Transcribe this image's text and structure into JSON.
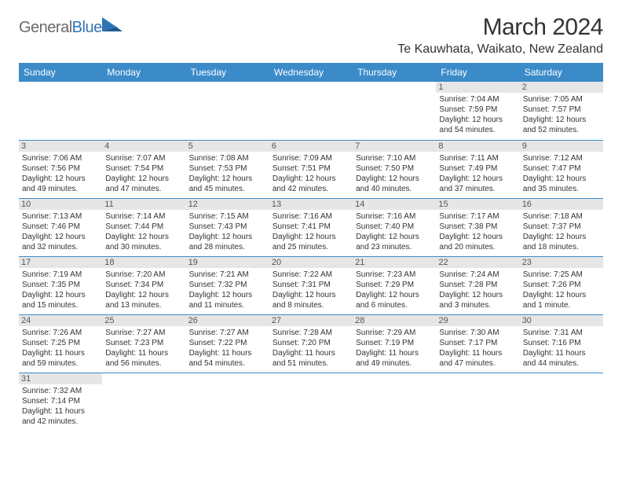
{
  "logo": {
    "text1": "General",
    "text2": "Blue"
  },
  "title": "March 2024",
  "location": "Te Kauwhata, Waikato, New Zealand",
  "colors": {
    "header_bg": "#3b8bc9",
    "header_fg": "#ffffff",
    "daynum_bg": "#e6e6e6",
    "row_border": "#3b8bc9",
    "text": "#333333",
    "logo_gray": "#6a6a6a",
    "logo_blue": "#2e74b5"
  },
  "day_headers": [
    "Sunday",
    "Monday",
    "Tuesday",
    "Wednesday",
    "Thursday",
    "Friday",
    "Saturday"
  ],
  "weeks": [
    [
      null,
      null,
      null,
      null,
      null,
      {
        "n": "1",
        "sr": "7:04 AM",
        "ss": "7:59 PM",
        "dl": "12 hours and 54 minutes."
      },
      {
        "n": "2",
        "sr": "7:05 AM",
        "ss": "7:57 PM",
        "dl": "12 hours and 52 minutes."
      }
    ],
    [
      {
        "n": "3",
        "sr": "7:06 AM",
        "ss": "7:56 PM",
        "dl": "12 hours and 49 minutes."
      },
      {
        "n": "4",
        "sr": "7:07 AM",
        "ss": "7:54 PM",
        "dl": "12 hours and 47 minutes."
      },
      {
        "n": "5",
        "sr": "7:08 AM",
        "ss": "7:53 PM",
        "dl": "12 hours and 45 minutes."
      },
      {
        "n": "6",
        "sr": "7:09 AM",
        "ss": "7:51 PM",
        "dl": "12 hours and 42 minutes."
      },
      {
        "n": "7",
        "sr": "7:10 AM",
        "ss": "7:50 PM",
        "dl": "12 hours and 40 minutes."
      },
      {
        "n": "8",
        "sr": "7:11 AM",
        "ss": "7:49 PM",
        "dl": "12 hours and 37 minutes."
      },
      {
        "n": "9",
        "sr": "7:12 AM",
        "ss": "7:47 PM",
        "dl": "12 hours and 35 minutes."
      }
    ],
    [
      {
        "n": "10",
        "sr": "7:13 AM",
        "ss": "7:46 PM",
        "dl": "12 hours and 32 minutes."
      },
      {
        "n": "11",
        "sr": "7:14 AM",
        "ss": "7:44 PM",
        "dl": "12 hours and 30 minutes."
      },
      {
        "n": "12",
        "sr": "7:15 AM",
        "ss": "7:43 PM",
        "dl": "12 hours and 28 minutes."
      },
      {
        "n": "13",
        "sr": "7:16 AM",
        "ss": "7:41 PM",
        "dl": "12 hours and 25 minutes."
      },
      {
        "n": "14",
        "sr": "7:16 AM",
        "ss": "7:40 PM",
        "dl": "12 hours and 23 minutes."
      },
      {
        "n": "15",
        "sr": "7:17 AM",
        "ss": "7:38 PM",
        "dl": "12 hours and 20 minutes."
      },
      {
        "n": "16",
        "sr": "7:18 AM",
        "ss": "7:37 PM",
        "dl": "12 hours and 18 minutes."
      }
    ],
    [
      {
        "n": "17",
        "sr": "7:19 AM",
        "ss": "7:35 PM",
        "dl": "12 hours and 15 minutes."
      },
      {
        "n": "18",
        "sr": "7:20 AM",
        "ss": "7:34 PM",
        "dl": "12 hours and 13 minutes."
      },
      {
        "n": "19",
        "sr": "7:21 AM",
        "ss": "7:32 PM",
        "dl": "12 hours and 11 minutes."
      },
      {
        "n": "20",
        "sr": "7:22 AM",
        "ss": "7:31 PM",
        "dl": "12 hours and 8 minutes."
      },
      {
        "n": "21",
        "sr": "7:23 AM",
        "ss": "7:29 PM",
        "dl": "12 hours and 6 minutes."
      },
      {
        "n": "22",
        "sr": "7:24 AM",
        "ss": "7:28 PM",
        "dl": "12 hours and 3 minutes."
      },
      {
        "n": "23",
        "sr": "7:25 AM",
        "ss": "7:26 PM",
        "dl": "12 hours and 1 minute."
      }
    ],
    [
      {
        "n": "24",
        "sr": "7:26 AM",
        "ss": "7:25 PM",
        "dl": "11 hours and 59 minutes."
      },
      {
        "n": "25",
        "sr": "7:27 AM",
        "ss": "7:23 PM",
        "dl": "11 hours and 56 minutes."
      },
      {
        "n": "26",
        "sr": "7:27 AM",
        "ss": "7:22 PM",
        "dl": "11 hours and 54 minutes."
      },
      {
        "n": "27",
        "sr": "7:28 AM",
        "ss": "7:20 PM",
        "dl": "11 hours and 51 minutes."
      },
      {
        "n": "28",
        "sr": "7:29 AM",
        "ss": "7:19 PM",
        "dl": "11 hours and 49 minutes."
      },
      {
        "n": "29",
        "sr": "7:30 AM",
        "ss": "7:17 PM",
        "dl": "11 hours and 47 minutes."
      },
      {
        "n": "30",
        "sr": "7:31 AM",
        "ss": "7:16 PM",
        "dl": "11 hours and 44 minutes."
      }
    ],
    [
      {
        "n": "31",
        "sr": "7:32 AM",
        "ss": "7:14 PM",
        "dl": "11 hours and 42 minutes."
      },
      null,
      null,
      null,
      null,
      null,
      null
    ]
  ],
  "labels": {
    "sunrise": "Sunrise: ",
    "sunset": "Sunset: ",
    "daylight": "Daylight: "
  }
}
